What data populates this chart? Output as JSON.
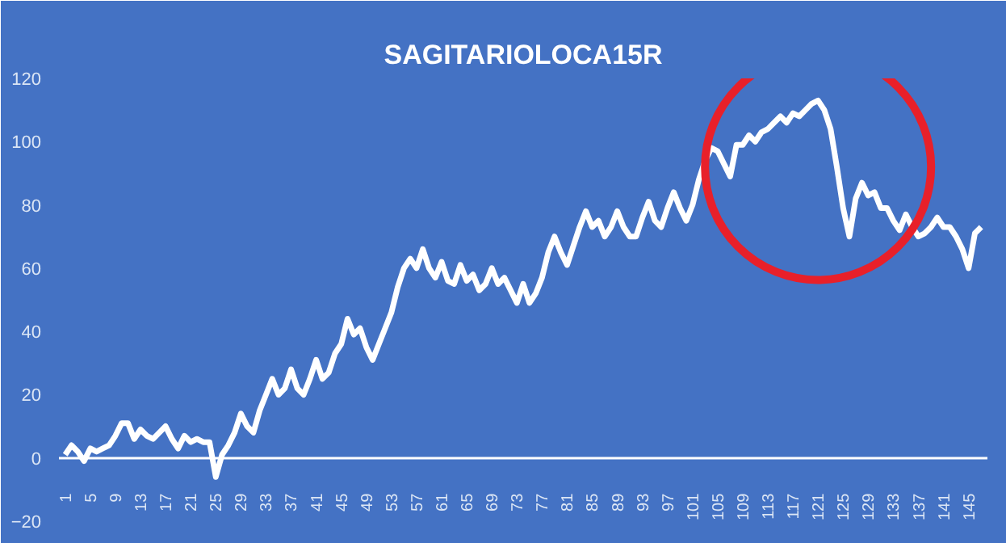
{
  "chart_data": {
    "type": "line",
    "title": "SAGITARIOLOCA15R",
    "categories": [
      "1",
      null,
      null,
      null,
      "5",
      null,
      null,
      null,
      "9",
      null,
      null,
      null,
      "13",
      null,
      null,
      null,
      "17",
      null,
      null,
      null,
      "21",
      null,
      null,
      null,
      "25",
      null,
      null,
      null,
      "29",
      null,
      null,
      null,
      "33",
      null,
      null,
      null,
      "37",
      null,
      null,
      null,
      "41",
      null,
      null,
      null,
      "45",
      null,
      null,
      null,
      "49",
      null,
      null,
      null,
      "53",
      null,
      null,
      null,
      "57",
      null,
      null,
      null,
      "61",
      null,
      null,
      null,
      "65",
      null,
      null,
      null,
      "69",
      null,
      null,
      null,
      "73",
      null,
      null,
      null,
      "77",
      null,
      null,
      null,
      "81",
      null,
      null,
      null,
      "85",
      null,
      null,
      null,
      "89",
      null,
      null,
      null,
      "93",
      null,
      null,
      null,
      "97",
      null,
      null,
      null,
      "101",
      null,
      null,
      null,
      "105",
      null,
      null,
      null,
      "109",
      null,
      null,
      null,
      "113",
      null,
      null,
      null,
      "117",
      null,
      null,
      null,
      "121",
      null,
      null,
      null,
      "125",
      null,
      null,
      null,
      "129",
      null,
      null,
      null,
      "133",
      null,
      null,
      null,
      "137",
      null,
      null,
      null,
      "141",
      null,
      null,
      null,
      "145",
      null,
      null
    ],
    "series": [
      {
        "color": "#ffffff",
        "values": [
          1,
          4,
          2,
          -1,
          3,
          2,
          3,
          4,
          7,
          11,
          11,
          6,
          9,
          7,
          6,
          8,
          10,
          6,
          3,
          7,
          5,
          6,
          5,
          5,
          -6,
          1,
          4,
          8,
          14,
          10,
          8,
          15,
          20,
          25,
          20,
          22,
          28,
          22,
          20,
          25,
          31,
          25,
          27,
          33,
          36,
          44,
          39,
          41,
          35,
          31,
          36,
          41,
          46,
          54,
          60,
          63,
          60,
          66,
          60,
          57,
          62,
          56,
          55,
          61,
          56,
          58,
          53,
          55,
          60,
          55,
          57,
          53,
          49,
          55,
          49,
          52,
          57,
          65,
          70,
          65,
          61,
          67,
          73,
          78,
          73,
          75,
          70,
          73,
          78,
          73,
          70,
          70,
          76,
          81,
          75,
          73,
          79,
          84,
          79,
          75,
          80,
          88,
          94,
          98,
          97,
          93,
          89,
          99,
          99,
          102,
          100,
          103,
          104,
          106,
          108,
          106,
          109,
          108,
          110,
          112,
          113,
          110,
          104,
          92,
          79,
          70,
          82,
          87,
          83,
          84,
          79,
          79,
          75,
          72,
          77,
          73,
          70,
          71,
          73,
          76,
          73,
          73,
          70,
          66,
          60,
          71,
          73
        ]
      }
    ],
    "ylim": [
      -20,
      120
    ],
    "yticks": [
      -20,
      0,
      20,
      40,
      60,
      80,
      100,
      120
    ]
  }
}
